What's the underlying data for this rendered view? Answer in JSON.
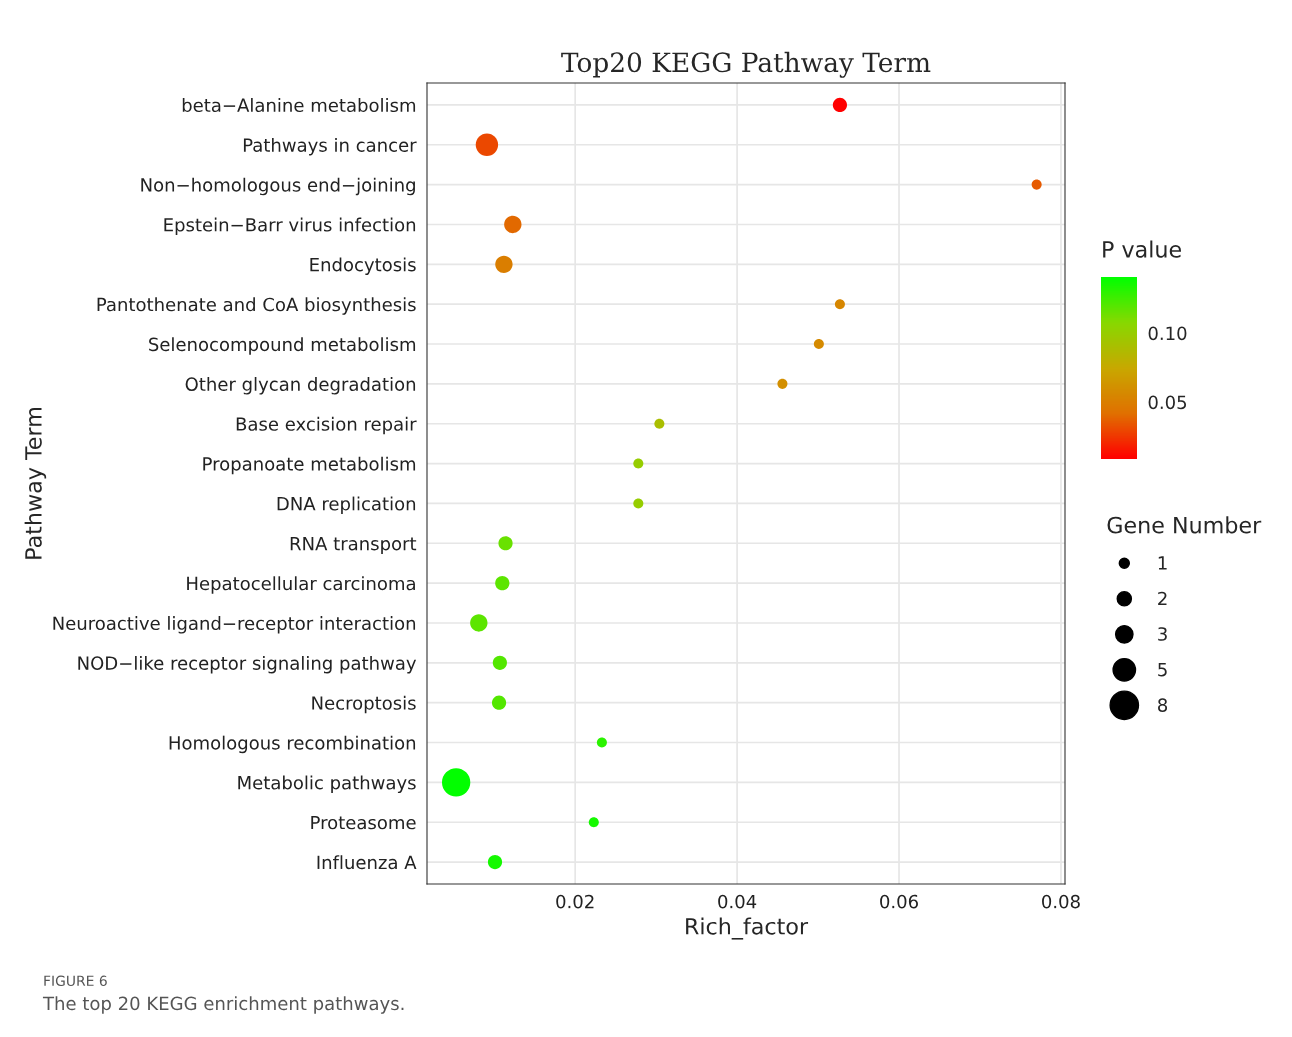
{
  "chart_data": {
    "type": "bubble",
    "title": "Top20 KEGG Pathway Term",
    "xlabel": "Rich_factor",
    "ylabel": "Pathway Term",
    "legend_title": "Gene Number",
    "clabel": "P value",
    "categories": [
      "beta−Alanine metabolism",
      "Pathways in cancer",
      "Non−homologous end−joining",
      "Epstein−Barr virus infection",
      "Endocytosis",
      "Pantothenate and CoA biosynthesis",
      "Selenocompound metabolism",
      "Other glycan degradation",
      "Base excision repair",
      "Propanoate metabolism",
      "DNA replication",
      "RNA transport",
      "Hepatocellular carcinoma",
      "Neuroactive ligand−receptor interaction",
      "NOD−like receptor signaling pathway",
      "Necroptosis",
      "Homologous recombination",
      "Metabolic pathways",
      "Proteasome",
      "Influenza A"
    ],
    "values": [
      0.0527,
      0.0091,
      0.077,
      0.0123,
      0.0112,
      0.0527,
      0.0501,
      0.0456,
      0.0304,
      0.0278,
      0.0278,
      0.0114,
      0.011,
      0.0081,
      0.0107,
      0.0106,
      0.0233,
      0.0053,
      0.0223,
      0.0101
    ],
    "sizes": [
      2,
      5,
      1,
      3,
      3,
      1,
      1,
      1,
      1,
      1,
      1,
      2,
      2,
      3,
      2,
      2,
      1,
      8,
      1,
      2
    ],
    "size_legend": [
      1,
      2,
      3,
      5,
      8
    ],
    "cvalues": [
      0.009,
      0.03,
      0.035,
      0.04,
      0.05,
      0.055,
      0.057,
      0.06,
      0.09,
      0.1,
      0.1,
      0.115,
      0.118,
      0.118,
      0.12,
      0.12,
      0.13,
      0.14,
      0.135,
      0.135
    ],
    "clim": [
      0.0087,
      0.1406
    ],
    "cticks": [
      0.05,
      {
        "value": 0.1,
        "label": "0.10"
      }
    ],
    "xlim": [
      0.0017,
      0.0805
    ],
    "xticks": [
      0.02,
      0.04,
      0.06,
      0.08
    ],
    "grid": true,
    "orientation": "horizontal",
    "annotations": [
      "FIGURE 6",
      "The top 20 KEGG enrichment pathways."
    ]
  }
}
